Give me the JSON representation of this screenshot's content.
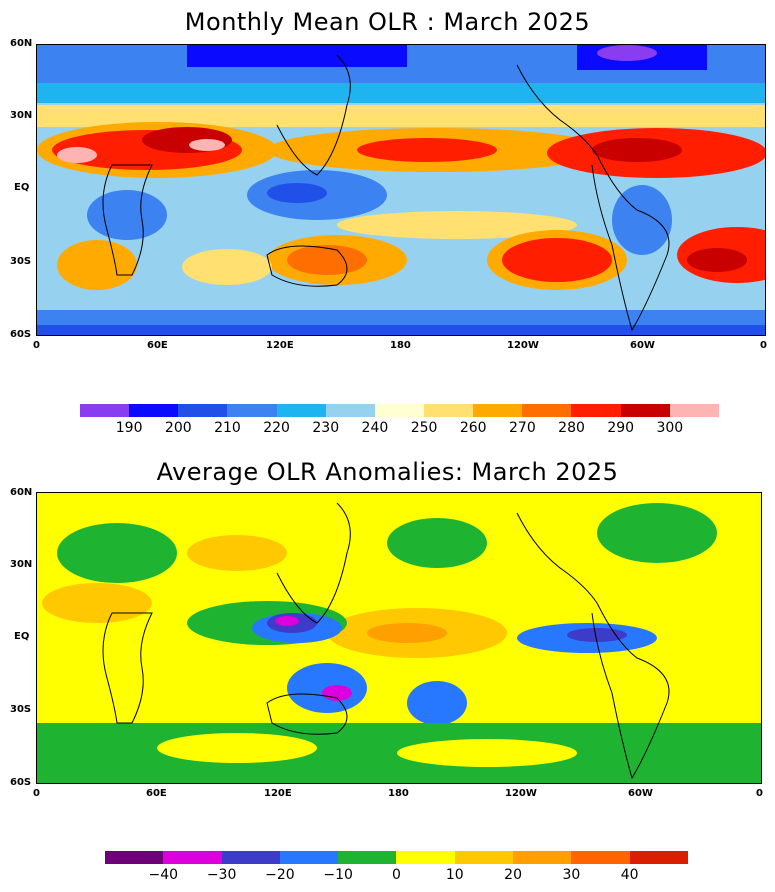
{
  "top": {
    "title": "Monthly Mean OLR : March 2025",
    "lat_labels": [
      "60N",
      "30N",
      "EQ",
      "30S",
      "60S"
    ],
    "lon_labels": [
      "0",
      "60E",
      "120E",
      "180",
      "120W",
      "60W",
      "0"
    ],
    "colorbar": {
      "colors": [
        "#8a3cf0",
        "#0a0aff",
        "#2050e8",
        "#3c82f0",
        "#1eb4f0",
        "#96d2f0",
        "#ffffd2",
        "#ffe070",
        "#ffaa00",
        "#ff6e00",
        "#ff1e00",
        "#c80000",
        "#ffb4b4"
      ],
      "ticks": [
        "190",
        "200",
        "210",
        "220",
        "230",
        "240",
        "250",
        "260",
        "270",
        "280",
        "290",
        "300"
      ]
    }
  },
  "bottom": {
    "title": "Average OLR Anomalies: March 2025",
    "lat_labels": [
      "60N",
      "30N",
      "EQ",
      "30S",
      "60S"
    ],
    "lon_labels": [
      "0",
      "60E",
      "120E",
      "180",
      "120W",
      "60W",
      "0"
    ],
    "colorbar": {
      "colors": [
        "#6e0078",
        "#dc00dc",
        "#3c3cc8",
        "#2878ff",
        "#1eb432",
        "#ffff00",
        "#ffc800",
        "#ffa000",
        "#ff6400",
        "#dc1e00"
      ],
      "ticks": [
        "−40",
        "−30",
        "−20",
        "−10",
        "0",
        "10",
        "20",
        "30",
        "40"
      ]
    }
  }
}
